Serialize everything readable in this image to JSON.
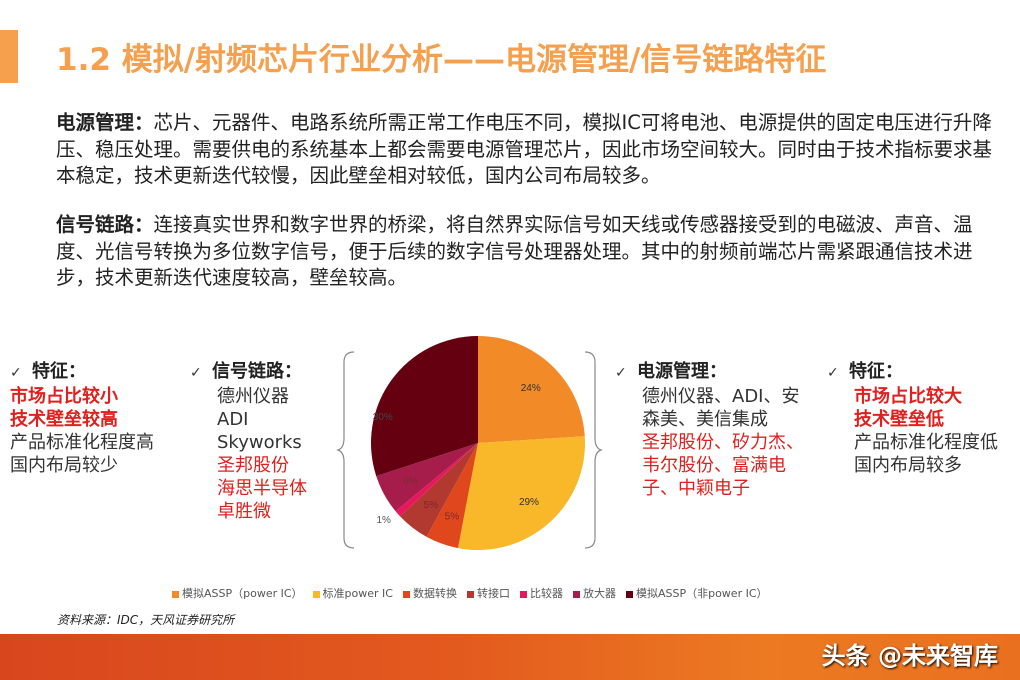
{
  "title": "1.2 模拟/射频芯片行业分析——电源管理/信号链路特征",
  "paragraphs": {
    "power": {
      "label": "电源管理：",
      "text": "芯片、元器件、电路系统所需正常工作电压不同，模拟IC可将电池、电源提供的固定电压进行升降压、稳压处理。需要供电的系统基本上都会需要电源管理芯片，因此市场空间较大。同时由于技术指标要求基本稳定，技术更新迭代较慢，因此壁垒相对较低，国内公司布局较多。"
    },
    "signal": {
      "label": "信号链路：",
      "text": "连接真实世界和数字世界的桥梁，将自然界实际信号如天线或传感器接受到的电磁波、声音、温度、光信号转换为多位数字信号，便于后续的数字信号处理器处理。其中的射频前端芯片需紧跟通信技术进步，技术更新迭代速度较高，壁垒较高。"
    }
  },
  "left_features": {
    "check": "✓",
    "head": "特征：",
    "red_lines": [
      "市场占比较小",
      "技术壁垒较高"
    ],
    "lines": [
      "产品标准化程度高",
      "国内布局较少"
    ]
  },
  "signal_chain": {
    "check": "✓",
    "head": "信号链路：",
    "lines": [
      "德州仪器",
      "ADI",
      "Skyworks"
    ],
    "red_lines": [
      "圣邦股份",
      "海思半导体",
      "卓胜微"
    ]
  },
  "power_mgmt": {
    "check": "✓",
    "head": "电源管理：",
    "text": "德州仪器、ADI、安森美、美信集成",
    "red_text": "圣邦股份、矽力杰、韦尔股份、富满电子、中颖电子"
  },
  "right_features": {
    "check": "✓",
    "head": "特征：",
    "red_lines": [
      "市场占比较大",
      "技术壁垒低"
    ],
    "lines": [
      "产品标准化程度低",
      "国内布局较多"
    ]
  },
  "chart_data": {
    "type": "pie",
    "title": "",
    "categories": [
      "模拟ASSP（power IC）",
      "标准power IC",
      "数据转换",
      "转接口",
      "比较器",
      "放大器",
      "模拟ASSP（非power IC）"
    ],
    "values": [
      24,
      29,
      5,
      5,
      1,
      6,
      30
    ],
    "labels": [
      "24%",
      "29%",
      "5%",
      "5%",
      "1%",
      "6%",
      "30%"
    ],
    "colors": [
      "#f28a28",
      "#f9b72a",
      "#e0471c",
      "#b2392f",
      "#e8175d",
      "#a61d4c",
      "#650010"
    ],
    "legend_position": "bottom"
  },
  "source": "资料来源：IDC，天风证券研究所",
  "watermark": "头条 @未来智库"
}
